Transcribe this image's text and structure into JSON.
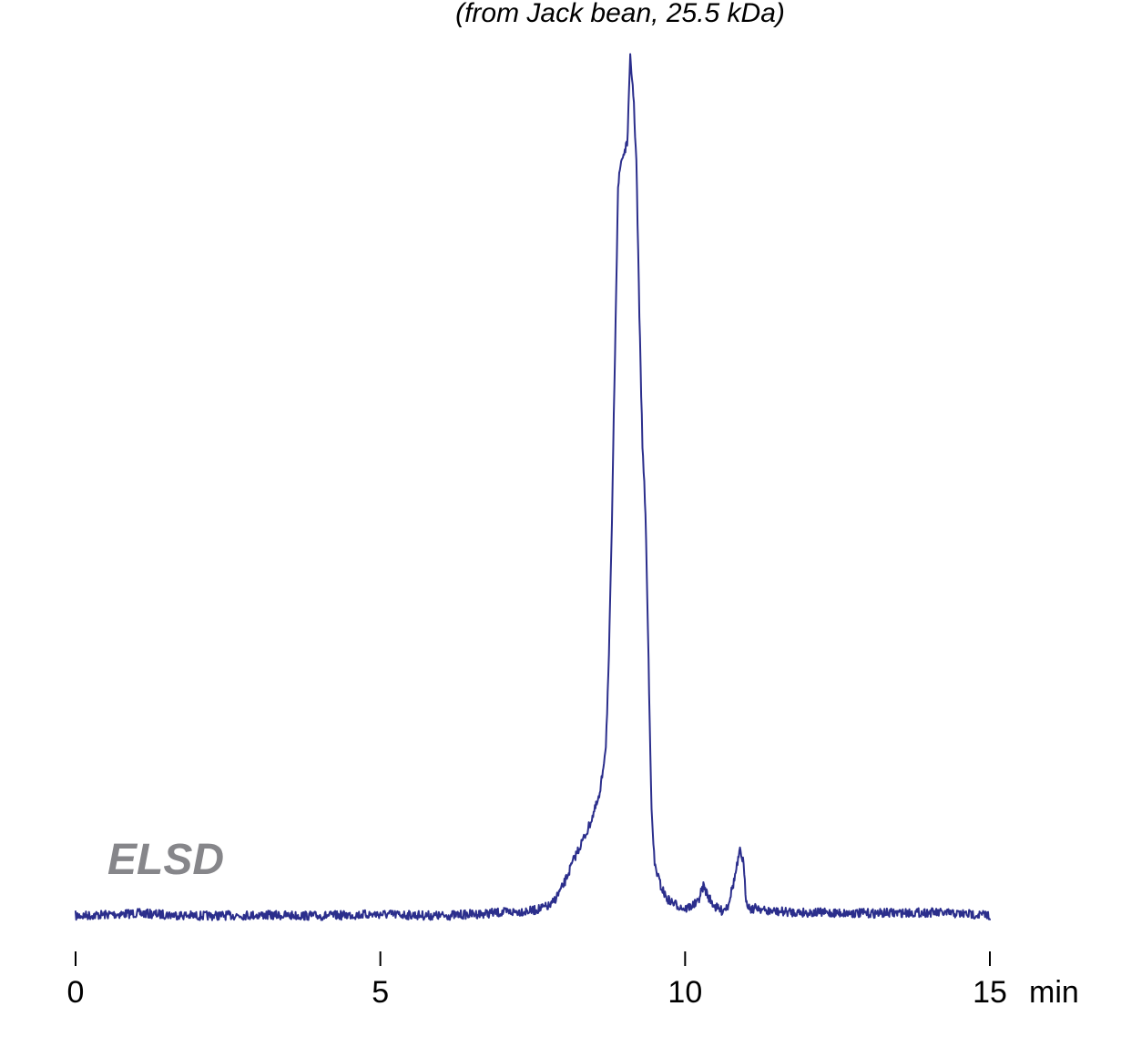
{
  "chart_data": {
    "type": "line",
    "title": "",
    "subtitle": "(from Jack bean, 25.5 kDa)",
    "detector_label": "ELSD",
    "xlabel": "min",
    "ylabel": "",
    "x_unit": "min",
    "xlim": [
      0,
      15
    ],
    "ylim": [
      0,
      1
    ],
    "x_ticks": [
      0,
      5,
      10,
      15
    ],
    "x_tick_labels": [
      "0",
      "5",
      "10",
      "15"
    ],
    "grid": false,
    "legend": "none",
    "colors": {
      "trace": "#2b2e8c",
      "detector_label": "#86868a",
      "text": "#000000"
    },
    "series": [
      {
        "x": [
          0.0,
          1.0,
          2.0,
          3.0,
          4.0,
          5.0,
          6.0,
          7.0,
          7.5,
          7.8,
          8.0,
          8.2,
          8.4,
          8.6,
          8.7,
          8.75,
          8.8,
          8.85,
          8.9,
          8.95,
          9.0,
          9.05,
          9.1,
          9.15,
          9.2,
          9.25,
          9.3,
          9.35,
          9.4,
          9.45,
          9.5,
          9.6,
          9.7,
          9.8,
          10.0,
          10.2,
          10.3,
          10.4,
          10.5,
          10.6,
          10.7,
          10.8,
          10.9,
          10.95,
          11.0,
          11.05,
          11.1,
          11.2,
          11.3,
          11.5,
          12.0,
          13.0,
          14.0,
          15.0
        ],
        "y": [
          0.0,
          0.003,
          0.0,
          0.001,
          0.0,
          0.002,
          0.0,
          0.004,
          0.006,
          0.012,
          0.035,
          0.07,
          0.1,
          0.14,
          0.2,
          0.3,
          0.46,
          0.66,
          0.85,
          0.88,
          0.89,
          0.9,
          1.0,
          0.96,
          0.88,
          0.7,
          0.55,
          0.47,
          0.3,
          0.12,
          0.06,
          0.035,
          0.02,
          0.015,
          0.008,
          0.015,
          0.035,
          0.02,
          0.01,
          0.006,
          0.012,
          0.04,
          0.075,
          0.065,
          0.02,
          0.01,
          0.008,
          0.01,
          0.006,
          0.005,
          0.004,
          0.003,
          0.004,
          0.001
        ]
      }
    ]
  }
}
